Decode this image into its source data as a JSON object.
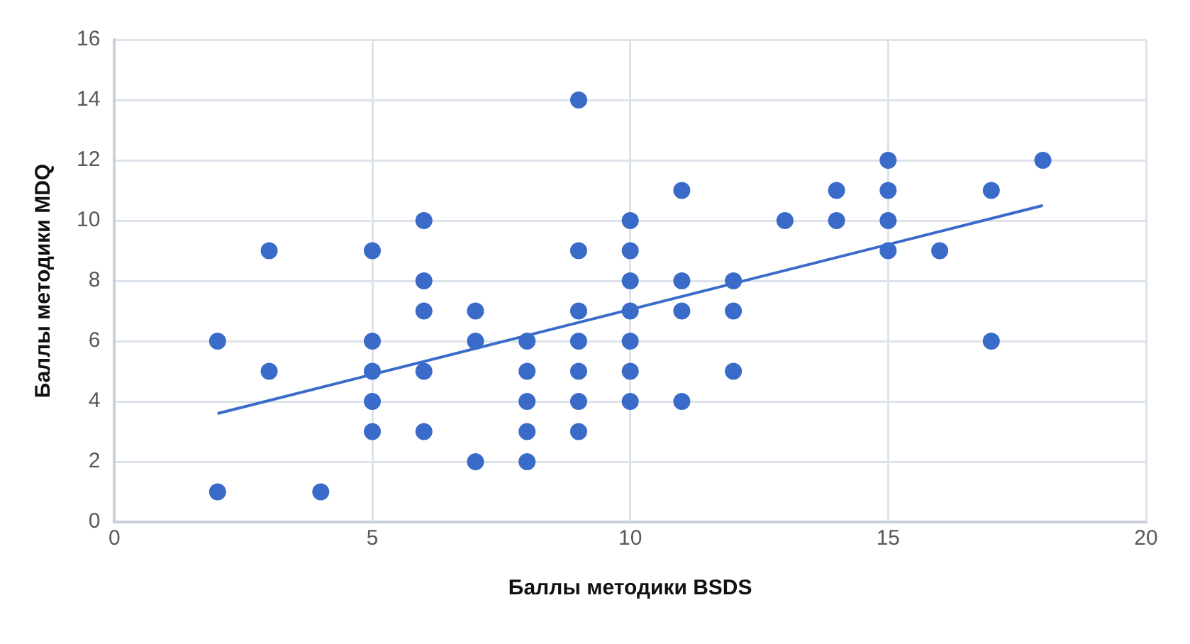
{
  "chart_data": {
    "type": "scatter",
    "xlabel": "Баллы методики BSDS",
    "ylabel": "Баллы методики MDQ",
    "xlim": [
      0,
      20
    ],
    "xticks": [
      0,
      5,
      10,
      15,
      20
    ],
    "ylim": [
      0,
      16
    ],
    "yticks": [
      0,
      2,
      4,
      6,
      8,
      10,
      12,
      14,
      16
    ],
    "grid": true,
    "legend": false,
    "marker": "circle",
    "series": [
      {
        "color": "#3a6bc9",
        "x": [
          2,
          2,
          3,
          3,
          4,
          5,
          5,
          5,
          5,
          5,
          6,
          6,
          6,
          6,
          6,
          7,
          7,
          7,
          8,
          8,
          8,
          8,
          8,
          9,
          9,
          9,
          9,
          9,
          9,
          9,
          10,
          10,
          10,
          10,
          10,
          10,
          10,
          11,
          11,
          11,
          11,
          12,
          12,
          12,
          13,
          14,
          14,
          15,
          15,
          15,
          15,
          16,
          17,
          17,
          18
        ],
        "values": [
          6,
          1,
          9,
          5,
          1,
          9,
          6,
          5,
          4,
          3,
          10,
          8,
          7,
          5,
          3,
          7,
          6,
          2,
          6,
          5,
          4,
          3,
          2,
          14,
          9,
          7,
          6,
          5,
          4,
          3,
          10,
          9,
          8,
          7,
          6,
          5,
          4,
          11,
          8,
          7,
          4,
          8,
          7,
          5,
          10,
          11,
          10,
          12,
          11,
          10,
          9,
          9,
          11,
          6,
          12
        ]
      },
      {
        "type": "line",
        "color": "#3a6bc9",
        "x": [
          2,
          18
        ],
        "values": [
          3.6,
          10.5
        ],
        "marker": "none",
        "line_style": "solid"
      }
    ]
  }
}
